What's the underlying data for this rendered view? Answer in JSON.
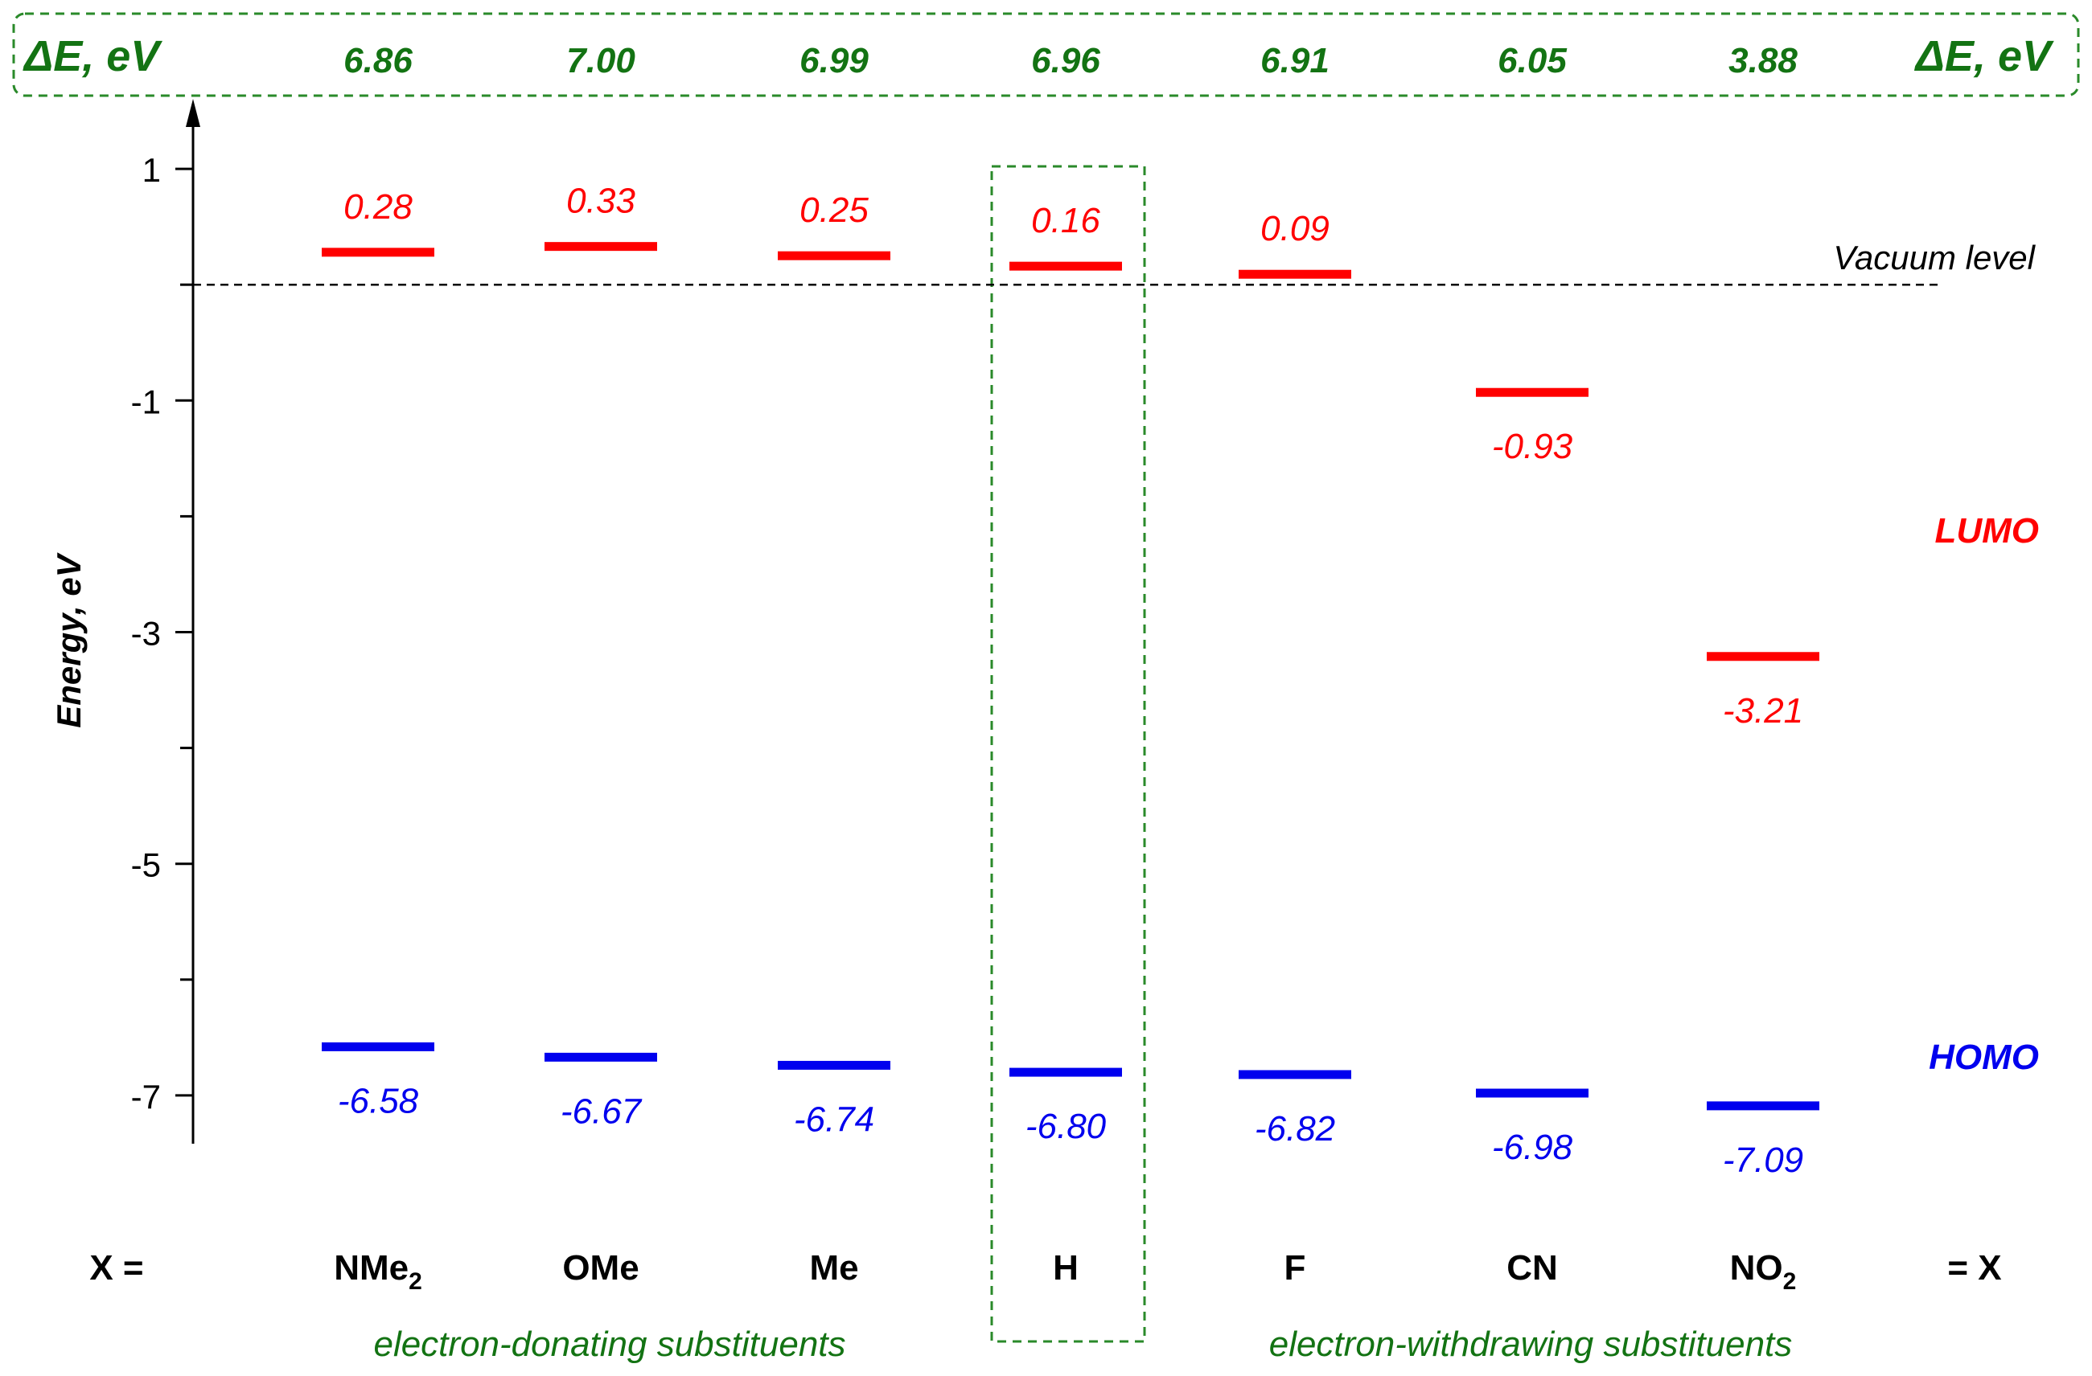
{
  "chart_data": {
    "type": "energy-level",
    "ylabel": "Energy, eV",
    "y_ticks": [
      "1",
      "-1",
      "-3",
      "-5",
      "-7"
    ],
    "ylim": [
      -7.4,
      1.0
    ],
    "delta_e_label": "ΔE, eV",
    "x_row_label_left": "X =",
    "x_row_label_right": "= X",
    "substituents": [
      {
        "label": "NMe",
        "sub": "2",
        "delta_e": "6.86",
        "lumo": 0.28,
        "lumo_label": "0.28",
        "homo": -6.58,
        "homo_label": "-6.58"
      },
      {
        "label": "OMe",
        "sub": "",
        "delta_e": "7.00",
        "lumo": 0.33,
        "lumo_label": "0.33",
        "homo": -6.67,
        "homo_label": "-6.67"
      },
      {
        "label": "Me",
        "sub": "",
        "delta_e": "6.99",
        "lumo": 0.25,
        "lumo_label": "0.25",
        "homo": -6.74,
        "homo_label": "-6.74"
      },
      {
        "label": "H",
        "sub": "",
        "delta_e": "6.96",
        "lumo": 0.16,
        "lumo_label": "0.16",
        "homo": -6.8,
        "homo_label": "-6.80"
      },
      {
        "label": "F",
        "sub": "",
        "delta_e": "6.91",
        "lumo": 0.09,
        "lumo_label": "0.09",
        "homo": -6.82,
        "homo_label": "-6.82"
      },
      {
        "label": "CN",
        "sub": "",
        "delta_e": "6.05",
        "lumo": -0.93,
        "lumo_label": "-0.93",
        "homo": -6.98,
        "homo_label": "-6.98"
      },
      {
        "label": "NO",
        "sub": "2",
        "delta_e": "3.88",
        "lumo": -3.21,
        "lumo_label": "-3.21",
        "homo": -7.09,
        "homo_label": "-7.09"
      }
    ],
    "vacuum_label": "Vacuum level",
    "lumo_legend": "LUMO",
    "homo_legend": "HOMO",
    "group_labels": {
      "donating": "electron-donating substituents",
      "withdrawing": "electron-withdrawing substituents"
    },
    "colors": {
      "lumo": "#ff0000",
      "homo": "#0000ee",
      "delta_e": "#137313",
      "box": "#2a8a2a",
      "axis": "#000000"
    }
  }
}
